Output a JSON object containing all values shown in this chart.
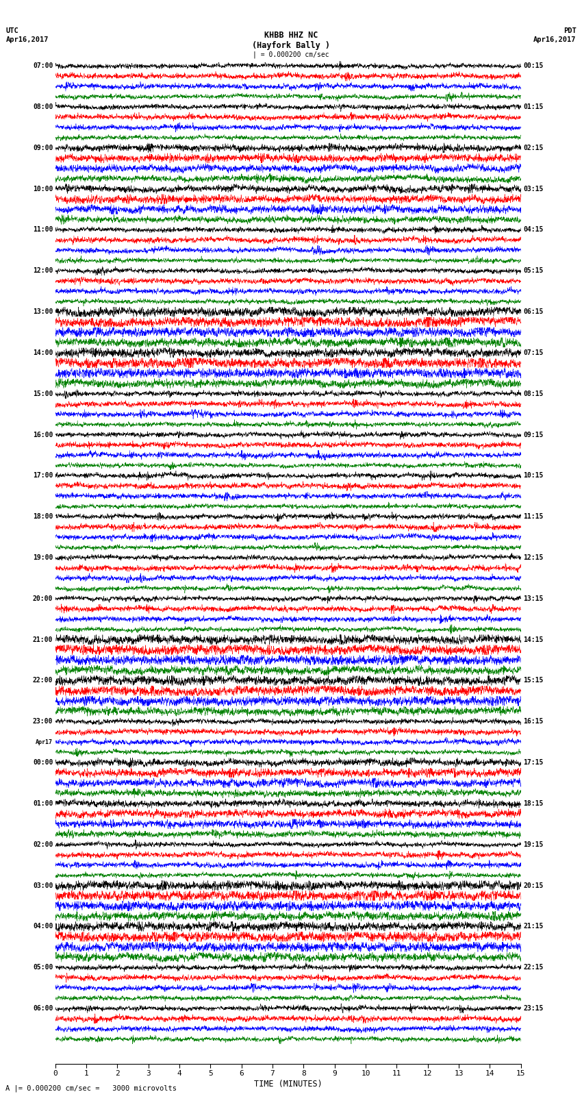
{
  "title_line1": "KHBB HHZ NC",
  "title_line2": "(Hayfork Bally )",
  "scale_label": "| = 0.000200 cm/sec",
  "footer_label": "A |= 0.000200 cm/sec =   3000 microvolts",
  "utc_label": "UTC\nApr16,2017",
  "pdt_label": "PDT\nApr16,2017",
  "xlabel": "TIME (MINUTES)",
  "left_times": [
    "07:00",
    "08:00",
    "09:00",
    "10:00",
    "11:00",
    "12:00",
    "13:00",
    "14:00",
    "15:00",
    "16:00",
    "17:00",
    "18:00",
    "19:00",
    "20:00",
    "21:00",
    "22:00",
    "23:00",
    "Apr17\n00:00",
    "01:00",
    "02:00",
    "03:00",
    "04:00",
    "05:00",
    "06:00"
  ],
  "right_times": [
    "00:15",
    "01:15",
    "02:15",
    "03:15",
    "04:15",
    "05:15",
    "06:15",
    "07:15",
    "08:15",
    "09:15",
    "10:15",
    "11:15",
    "12:15",
    "13:15",
    "14:15",
    "15:15",
    "16:15",
    "17:15",
    "18:15",
    "19:15",
    "20:15",
    "21:15",
    "22:15",
    "23:15"
  ],
  "n_rows": 24,
  "traces_per_row": 4,
  "colors": [
    "black",
    "red",
    "blue",
    "green"
  ],
  "bg_color": "white",
  "fig_width": 8.5,
  "fig_height": 16.13,
  "dpi": 100,
  "n_points": 3000,
  "xlim": [
    0,
    15
  ],
  "xticks": [
    0,
    1,
    2,
    3,
    4,
    5,
    6,
    7,
    8,
    9,
    10,
    11,
    12,
    13,
    14,
    15
  ]
}
